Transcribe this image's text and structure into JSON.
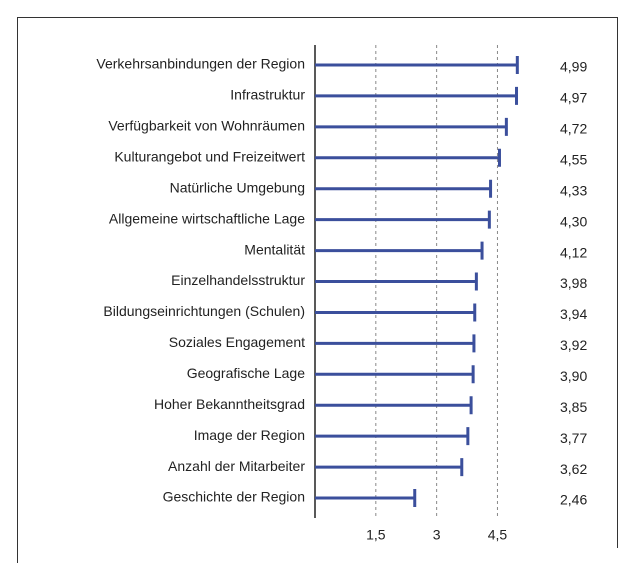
{
  "chart_data": {
    "type": "bar",
    "orientation": "horizontal",
    "categories": [
      "Verkehrsanbindungen der Region",
      "Infrastruktur",
      "Verfügbarkeit von Wohnräumen",
      "Kulturangebot und Freizeitwert",
      "Natürliche Umgebung",
      "Allgemeine wirtschaftliche Lage",
      "Mentalität",
      "Einzelhandelsstruktur",
      "Bildungseinrichtungen (Schulen)",
      "Soziales Engagement",
      "Geografische Lage",
      "Hoher Bekanntheitsgrad",
      "Image der Region",
      "Anzahl der Mitarbeiter",
      "Geschichte der Region"
    ],
    "values": [
      4.99,
      4.97,
      4.72,
      4.55,
      4.33,
      4.3,
      4.12,
      3.98,
      3.94,
      3.92,
      3.9,
      3.85,
      3.77,
      3.62,
      2.46
    ],
    "value_labels": [
      "4,99",
      "4,97",
      "4,72",
      "4,55",
      "4,33",
      "4,30",
      "4,12",
      "3,98",
      "3,94",
      "3,92",
      "3,90",
      "3,85",
      "3,77",
      "3,62",
      "2,46"
    ],
    "color": "#3b4f9c",
    "xlim": [
      0,
      5.5
    ],
    "xticks": [
      {
        "value": 1.5,
        "label": "1,5"
      },
      3,
      {
        "value": 4.5,
        "label": "4,5"
      }
    ],
    "grid": true
  }
}
